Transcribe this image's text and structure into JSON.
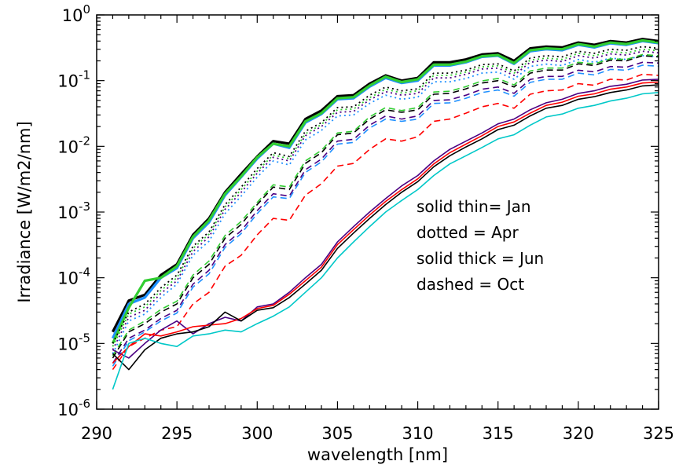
{
  "chart_data": {
    "type": "line",
    "xlabel": "wavelength [nm]",
    "ylabel": "Irradiance [W/m2/nm]",
    "xlim": [
      290,
      325
    ],
    "ylim": [
      1e-06,
      1
    ],
    "yscale": "log",
    "x_ticks": [
      "290",
      "295",
      "300",
      "305",
      "310",
      "315",
      "320",
      "325"
    ],
    "y_ticks": [
      {
        "base": "10",
        "exp": "-6"
      },
      {
        "base": "10",
        "exp": "-5"
      },
      {
        "base": "10",
        "exp": "-4"
      },
      {
        "base": "10",
        "exp": "-3"
      },
      {
        "base": "10",
        "exp": "-2"
      },
      {
        "base": "10",
        "exp": "-1"
      },
      {
        "base": "10",
        "exp": "0"
      }
    ],
    "annotations": [
      "solid thin= Jan",
      "dotted = Apr",
      "solid thick = Jun",
      "dashed = Oct"
    ],
    "line_styles": {
      "Jan": "solid-thin",
      "Apr": "dotted",
      "Jun": "solid-thick",
      "Oct": "dashed"
    },
    "colors": [
      "#000000",
      "#4b0082",
      "#1e90ff",
      "#00c8c8",
      "#32cd32",
      "#ff0000"
    ],
    "x": [
      291,
      292,
      293,
      294,
      295,
      296,
      297,
      298,
      299,
      300,
      301,
      302,
      303,
      304,
      305,
      306,
      307,
      308,
      309,
      310,
      311,
      312,
      313,
      314,
      315,
      316,
      317,
      318,
      319,
      320,
      321,
      322,
      323,
      324,
      325
    ],
    "series": [
      {
        "style": "solid-thick",
        "color": "#000000",
        "values": [
          1.5e-05,
          4.5e-05,
          5.5e-05,
          0.00011,
          0.00016,
          0.00045,
          0.0008,
          0.002,
          0.0038,
          0.007,
          0.012,
          0.011,
          0.026,
          0.035,
          0.058,
          0.06,
          0.09,
          0.12,
          0.1,
          0.11,
          0.19,
          0.19,
          0.21,
          0.25,
          0.26,
          0.2,
          0.31,
          0.33,
          0.32,
          0.38,
          0.35,
          0.4,
          0.38,
          0.43,
          0.4
        ]
      },
      {
        "style": "solid-thick",
        "color": "#1e90ff",
        "values": [
          1.2e-05,
          4e-05,
          5e-05,
          0.0001,
          0.00014,
          0.0004,
          0.0007,
          0.0018,
          0.0034,
          0.0065,
          0.011,
          0.0095,
          0.023,
          0.031,
          0.052,
          0.054,
          0.081,
          0.11,
          0.092,
          0.1,
          0.17,
          0.17,
          0.19,
          0.23,
          0.24,
          0.18,
          0.28,
          0.3,
          0.29,
          0.35,
          0.32,
          0.37,
          0.35,
          0.4,
          0.37
        ]
      },
      {
        "style": "solid-thick",
        "color": "#32cd32",
        "values": [
          1e-05,
          3.5e-05,
          9e-05,
          0.0001,
          0.00015,
          0.00042,
          0.00075,
          0.0019,
          0.0035,
          0.0068,
          0.011,
          0.01,
          0.024,
          0.032,
          0.054,
          0.056,
          0.084,
          0.115,
          0.095,
          0.105,
          0.175,
          0.175,
          0.195,
          0.235,
          0.245,
          0.185,
          0.29,
          0.31,
          0.3,
          0.36,
          0.33,
          0.38,
          0.36,
          0.41,
          0.38
        ]
      },
      {
        "style": "dotted",
        "color": "#000000",
        "values": [
          1e-05,
          3e-05,
          4e-05,
          7e-05,
          0.00011,
          0.0003,
          0.0005,
          0.0013,
          0.0024,
          0.0046,
          0.008,
          0.007,
          0.017,
          0.023,
          0.039,
          0.04,
          0.06,
          0.08,
          0.07,
          0.075,
          0.13,
          0.13,
          0.145,
          0.175,
          0.18,
          0.14,
          0.22,
          0.24,
          0.23,
          0.28,
          0.26,
          0.3,
          0.29,
          0.33,
          0.31
        ]
      },
      {
        "style": "dotted",
        "color": "#4b0082",
        "values": [
          8e-06,
          2.5e-05,
          3.2e-05,
          5.8e-05,
          9e-05,
          0.00025,
          0.00042,
          0.0011,
          0.002,
          0.0039,
          0.0068,
          0.006,
          0.0145,
          0.02,
          0.033,
          0.034,
          0.051,
          0.068,
          0.06,
          0.064,
          0.11,
          0.11,
          0.125,
          0.15,
          0.155,
          0.12,
          0.19,
          0.205,
          0.195,
          0.24,
          0.22,
          0.255,
          0.245,
          0.28,
          0.265
        ]
      },
      {
        "style": "dotted",
        "color": "#32cd32",
        "values": [
          9e-06,
          2.8e-05,
          3.6e-05,
          6.4e-05,
          0.0001,
          0.00028,
          0.00046,
          0.0012,
          0.0022,
          0.0042,
          0.0074,
          0.0065,
          0.0155,
          0.0215,
          0.036,
          0.037,
          0.055,
          0.074,
          0.065,
          0.07,
          0.12,
          0.12,
          0.135,
          0.162,
          0.168,
          0.13,
          0.205,
          0.22,
          0.21,
          0.26,
          0.24,
          0.275,
          0.265,
          0.3,
          0.285
        ]
      },
      {
        "style": "dotted",
        "color": "#1e90ff",
        "values": [
          7e-06,
          2.2e-05,
          2.8e-05,
          5e-05,
          8e-05,
          0.00022,
          0.00036,
          0.00095,
          0.00175,
          0.0034,
          0.006,
          0.0052,
          0.0125,
          0.0175,
          0.029,
          0.03,
          0.045,
          0.06,
          0.052,
          0.056,
          0.096,
          0.096,
          0.108,
          0.13,
          0.135,
          0.105,
          0.165,
          0.178,
          0.17,
          0.21,
          0.19,
          0.22,
          0.21,
          0.24,
          0.23
        ]
      },
      {
        "style": "dashed",
        "color": "#000000",
        "values": [
          6e-06,
          1.5e-05,
          2e-05,
          3e-05,
          4e-05,
          0.0001,
          0.00016,
          0.0004,
          0.00065,
          0.0013,
          0.0024,
          0.0022,
          0.0055,
          0.008,
          0.015,
          0.016,
          0.026,
          0.036,
          0.033,
          0.036,
          0.062,
          0.064,
          0.075,
          0.092,
          0.1,
          0.08,
          0.13,
          0.145,
          0.145,
          0.18,
          0.17,
          0.205,
          0.2,
          0.24,
          0.23
        ]
      },
      {
        "style": "dashed",
        "color": "#32cd32",
        "values": [
          6.5e-06,
          1.6e-05,
          2.2e-05,
          3.3e-05,
          4.4e-05,
          0.00011,
          0.00018,
          0.00044,
          0.00072,
          0.0014,
          0.0026,
          0.0024,
          0.006,
          0.0087,
          0.016,
          0.017,
          0.028,
          0.039,
          0.035,
          0.039,
          0.067,
          0.069,
          0.081,
          0.099,
          0.108,
          0.086,
          0.14,
          0.155,
          0.155,
          0.19,
          0.18,
          0.215,
          0.21,
          0.25,
          0.24
        ]
      },
      {
        "style": "dashed",
        "color": "#4b0082",
        "values": [
          5e-06,
          1.2e-05,
          1.6e-05,
          2.4e-05,
          3.2e-05,
          8e-05,
          0.00013,
          0.00032,
          0.00052,
          0.00105,
          0.0019,
          0.00175,
          0.0044,
          0.0064,
          0.012,
          0.0128,
          0.021,
          0.029,
          0.026,
          0.029,
          0.05,
          0.051,
          0.06,
          0.074,
          0.08,
          0.064,
          0.104,
          0.116,
          0.116,
          0.144,
          0.136,
          0.164,
          0.16,
          0.19,
          0.185
        ]
      },
      {
        "style": "dashed",
        "color": "#1e90ff",
        "values": [
          4.5e-06,
          1.1e-05,
          1.5e-05,
          2.2e-05,
          2.9e-05,
          7.2e-05,
          0.000115,
          0.00029,
          0.00047,
          0.00095,
          0.0017,
          0.0016,
          0.004,
          0.0058,
          0.0108,
          0.0115,
          0.019,
          0.026,
          0.024,
          0.026,
          0.045,
          0.046,
          0.054,
          0.066,
          0.072,
          0.058,
          0.094,
          0.105,
          0.105,
          0.13,
          0.122,
          0.148,
          0.144,
          0.172,
          0.166
        ]
      },
      {
        "style": "dashed",
        "color": "#ff0000",
        "values": [
          4e-06,
          9e-06,
          1.2e-05,
          1.6e-05,
          1.8e-05,
          4e-05,
          6e-05,
          0.00015,
          0.00022,
          0.00045,
          0.0008,
          0.00075,
          0.0018,
          0.0027,
          0.005,
          0.0055,
          0.009,
          0.013,
          0.012,
          0.014,
          0.024,
          0.026,
          0.032,
          0.04,
          0.045,
          0.038,
          0.062,
          0.07,
          0.072,
          0.09,
          0.085,
          0.105,
          0.102,
          0.125,
          0.12
        ]
      },
      {
        "style": "solid-thin",
        "color": "#4b0082",
        "values": [
          8e-06,
          6e-06,
          1e-05,
          1.6e-05,
          2.2e-05,
          1.4e-05,
          2e-05,
          2.5e-05,
          2.2e-05,
          3.6e-05,
          4e-05,
          6e-05,
          0.0001,
          0.00016,
          0.00035,
          0.0006,
          0.001,
          0.0016,
          0.0025,
          0.0036,
          0.006,
          0.009,
          0.012,
          0.016,
          0.022,
          0.026,
          0.036,
          0.046,
          0.052,
          0.064,
          0.07,
          0.082,
          0.088,
          0.102,
          0.105
        ]
      },
      {
        "style": "solid-thin",
        "color": "#ff0000",
        "values": [
          5e-06,
          9e-06,
          1.4e-05,
          1.3e-05,
          1.5e-05,
          1.8e-05,
          1.9e-05,
          2e-05,
          2.4e-05,
          3.4e-05,
          3.8e-05,
          5.6e-05,
          9e-05,
          0.000145,
          0.00032,
          0.00054,
          0.0009,
          0.00145,
          0.0022,
          0.0032,
          0.0054,
          0.008,
          0.0108,
          0.0145,
          0.02,
          0.0235,
          0.032,
          0.042,
          0.047,
          0.058,
          0.063,
          0.074,
          0.08,
          0.092,
          0.095
        ]
      },
      {
        "style": "solid-thin",
        "color": "#000000",
        "values": [
          7e-06,
          4e-06,
          8e-06,
          1.2e-05,
          1.4e-05,
          1.5e-05,
          1.8e-05,
          3e-05,
          2.2e-05,
          3.2e-05,
          3.5e-05,
          5e-05,
          8e-05,
          0.00013,
          0.00028,
          0.00048,
          0.0008,
          0.0013,
          0.002,
          0.0029,
          0.0049,
          0.0072,
          0.0098,
          0.013,
          0.018,
          0.021,
          0.029,
          0.038,
          0.042,
          0.052,
          0.057,
          0.066,
          0.072,
          0.083,
          0.086
        ]
      },
      {
        "style": "solid-thin",
        "color": "#00c8c8",
        "values": [
          2e-06,
          1e-05,
          1.2e-05,
          1e-05,
          9e-06,
          1.3e-05,
          1.4e-05,
          1.6e-05,
          1.5e-05,
          2e-05,
          2.6e-05,
          3.6e-05,
          6e-05,
          0.0001,
          0.0002,
          0.00035,
          0.0006,
          0.001,
          0.0015,
          0.0022,
          0.0036,
          0.0054,
          0.0072,
          0.0096,
          0.013,
          0.015,
          0.021,
          0.028,
          0.031,
          0.038,
          0.042,
          0.049,
          0.054,
          0.063,
          0.066
        ]
      }
    ]
  }
}
